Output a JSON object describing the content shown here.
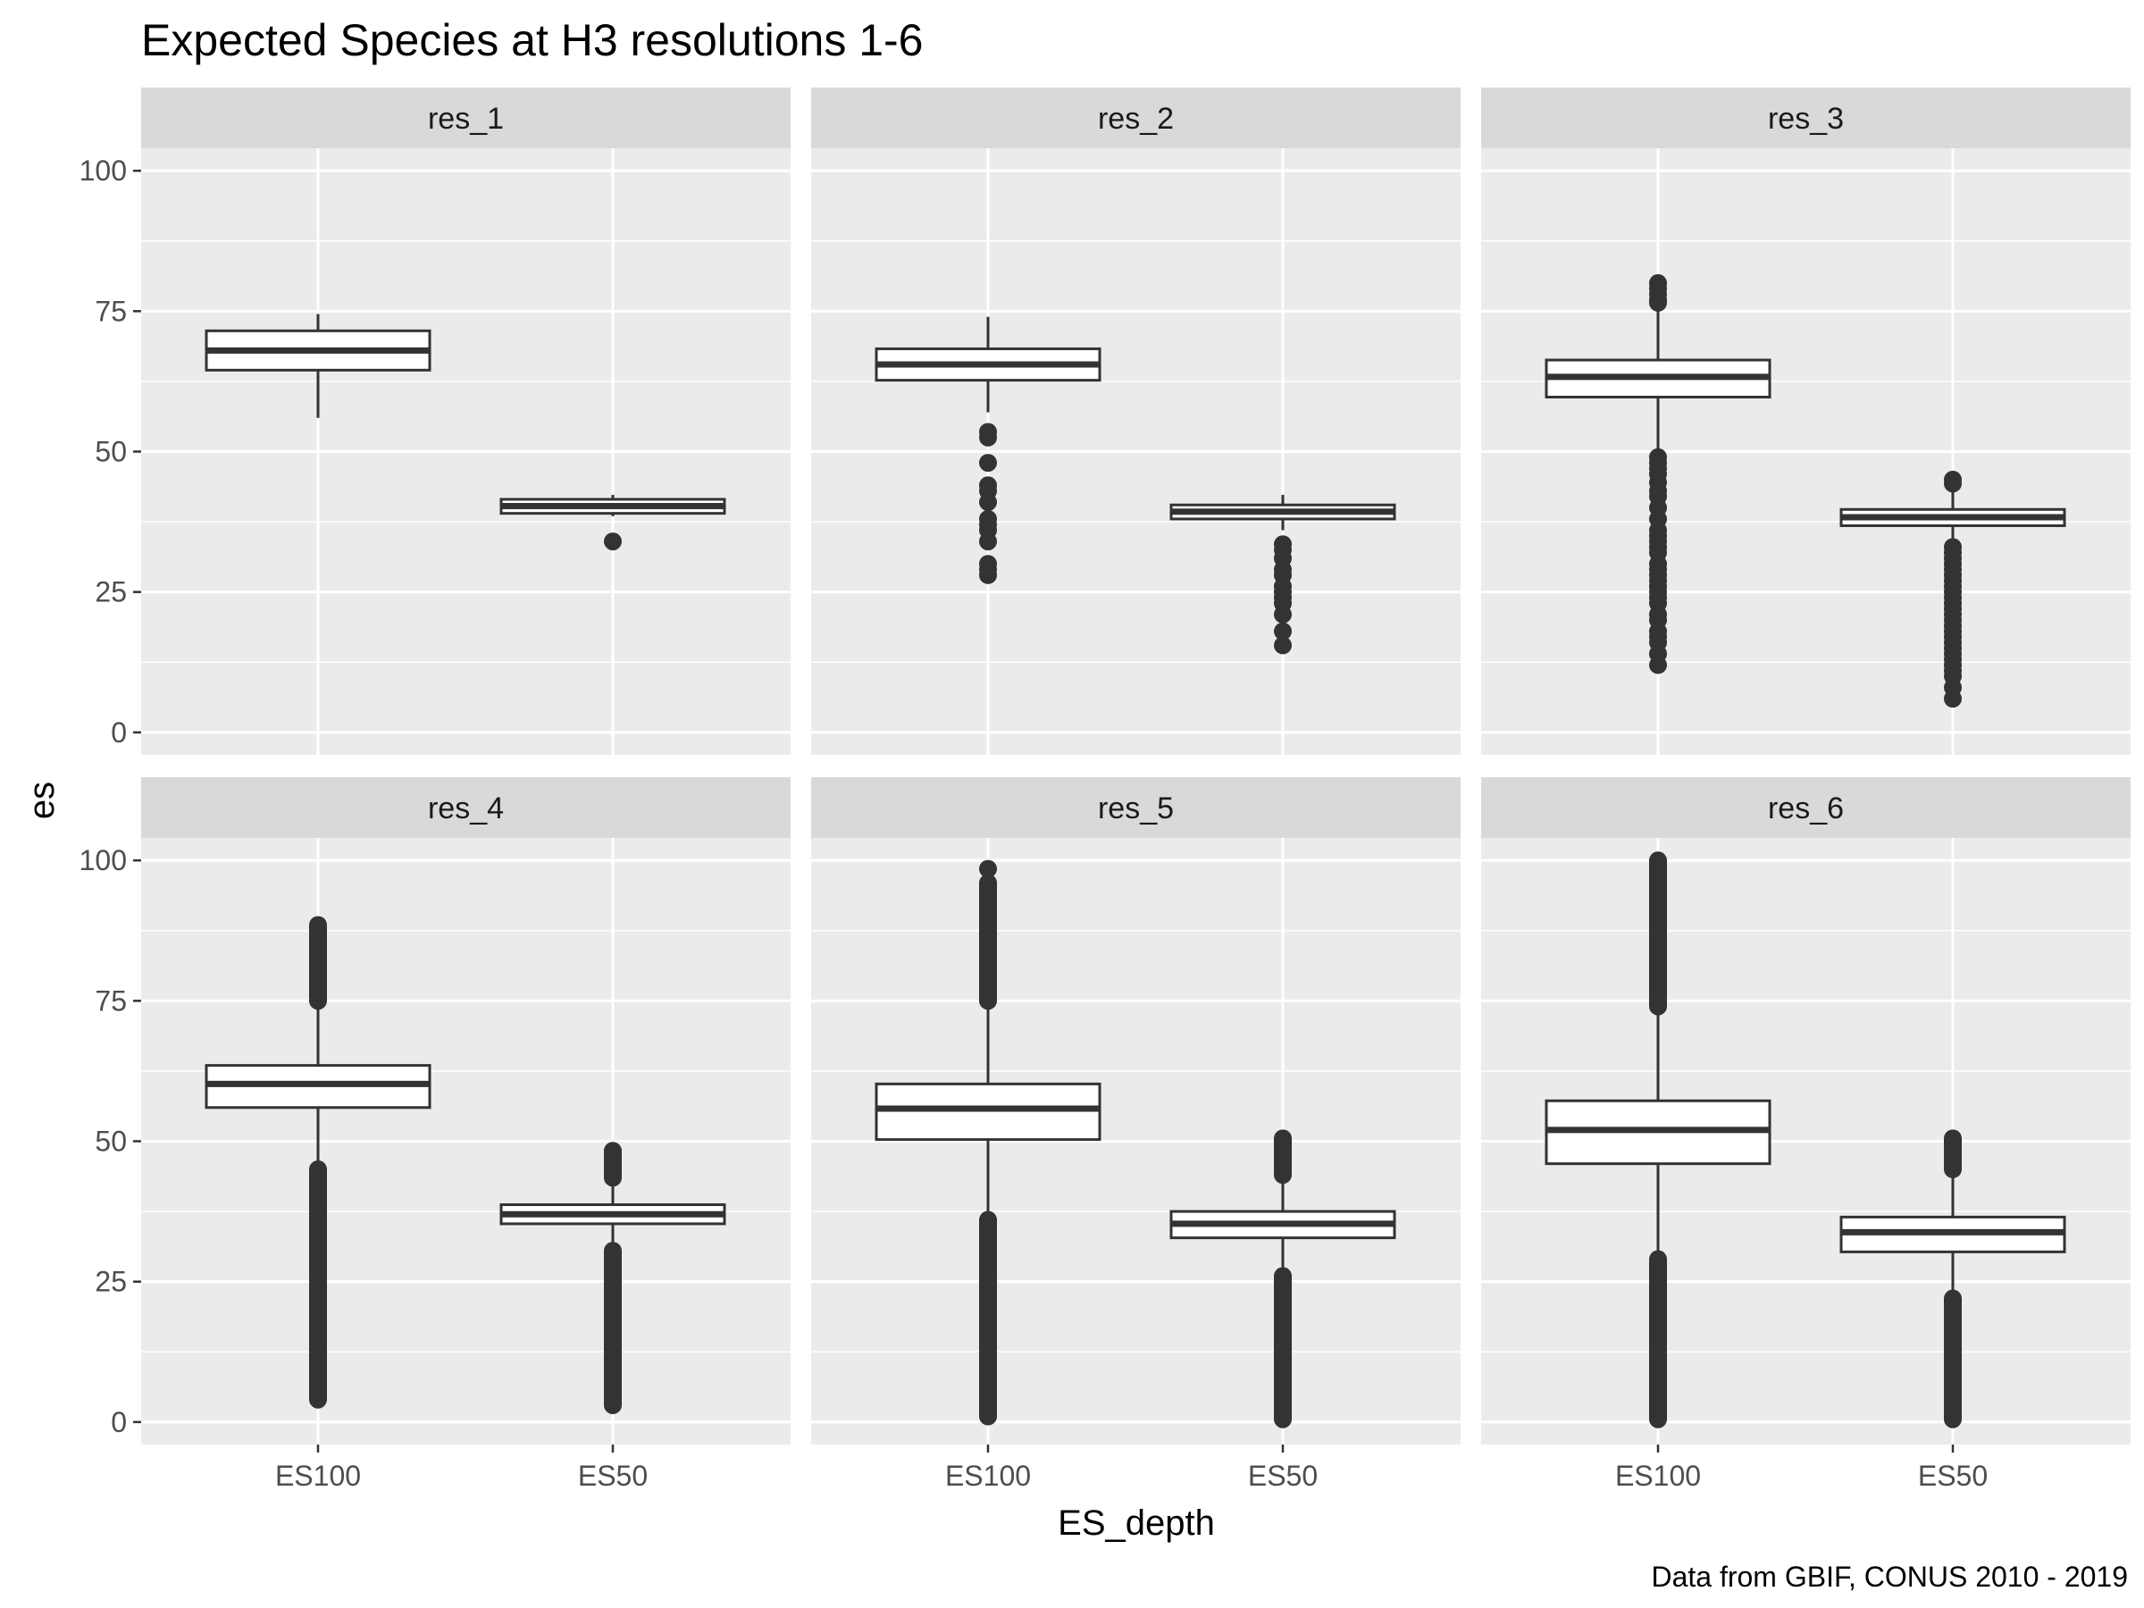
{
  "chart_data": {
    "type": "boxplot",
    "title": "Expected Species at H3 resolutions 1-6",
    "xlabel": "ES_depth",
    "ylabel": "es",
    "caption": "Data from GBIF, CONUS 2010 - 2019",
    "categories": [
      "ES100",
      "ES50"
    ],
    "ylim": [
      -4,
      104
    ],
    "yticks": [
      0,
      25,
      50,
      75,
      100
    ],
    "ytick_labels": [
      "0",
      "25",
      "50",
      "75",
      "100"
    ],
    "grid": true,
    "colors": {
      "panel_bg": "#ebebeb",
      "strip_bg": "#d9d9d9",
      "grid": "#ffffff",
      "box_fill": "#ffffff",
      "box_line": "#333333",
      "outlier": "#333333"
    },
    "panels": [
      {
        "label": "res_1",
        "boxes": [
          {
            "category": "ES100",
            "min": 56,
            "q1": 64.5,
            "median": 68,
            "q3": 71.5,
            "max": 74.5,
            "outliers": []
          },
          {
            "category": "ES50",
            "min": 38.5,
            "q1": 39,
            "median": 40.3,
            "q3": 41.5,
            "max": 42.3,
            "outliers": [
              34
            ]
          }
        ]
      },
      {
        "label": "res_2",
        "boxes": [
          {
            "category": "ES100",
            "min": 57,
            "q1": 62.7,
            "median": 65.5,
            "q3": 68.3,
            "max": 74,
            "outliers": [
              53.5,
              52.5,
              48,
              44,
              43,
              41,
              38,
              37,
              36,
              34,
              30,
              29,
              28
            ]
          },
          {
            "category": "ES50",
            "min": 36,
            "q1": 38,
            "median": 39.3,
            "q3": 40.5,
            "max": 42.3,
            "outliers": [
              33.5,
              32.5,
              31,
              29,
              28,
              26,
              25,
              24,
              23,
              21,
              18,
              15.5
            ]
          }
        ]
      },
      {
        "label": "res_3",
        "boxes": [
          {
            "category": "ES100",
            "min": 50,
            "q1": 59.7,
            "median": 63.3,
            "q3": 66.3,
            "max": 76,
            "outliers": [
              80,
              79,
              78,
              77,
              76.5,
              49,
              48,
              47,
              46,
              44.5,
              43,
              42,
              40,
              38,
              36,
              35,
              34,
              33,
              32,
              30,
              29,
              28,
              27,
              26,
              25,
              24,
              23,
              21,
              20,
              18,
              17,
              16,
              14,
              12
            ]
          },
          {
            "category": "ES50",
            "min": 33.5,
            "q1": 36.8,
            "median": 38.3,
            "q3": 39.7,
            "max": 43.5,
            "outliers": [
              45,
              44.3,
              33,
              32,
              31,
              30,
              29,
              28,
              27,
              26,
              25,
              24,
              23,
              22,
              21,
              20,
              19,
              18,
              17,
              16,
              15,
              14,
              13,
              12,
              11,
              10,
              8,
              6
            ]
          }
        ]
      },
      {
        "label": "res_4",
        "boxes": [
          {
            "category": "ES100",
            "min": 45,
            "q1": 56,
            "median": 60.2,
            "q3": 63.5,
            "max": 75,
            "outliers_range": [
              [
                75,
                88.5
              ],
              [
                4,
                45
              ]
            ]
          },
          {
            "category": "ES50",
            "min": 30.5,
            "q1": 35.3,
            "median": 37,
            "q3": 38.7,
            "max": 43.5,
            "outliers_range": [
              [
                43.5,
                48.3
              ],
              [
                3,
                30.5
              ]
            ]
          }
        ]
      },
      {
        "label": "res_5",
        "boxes": [
          {
            "category": "ES100",
            "min": 36,
            "q1": 50.3,
            "median": 55.8,
            "q3": 60.2,
            "max": 75,
            "outliers_range": [
              [
                75,
                96
              ]
            ],
            "outliers_extra": [
              98.5
            ],
            "outliers_range_low": [
              [
                1,
                36
              ]
            ]
          },
          {
            "category": "ES50",
            "min": 26,
            "q1": 32.8,
            "median": 35.3,
            "q3": 37.5,
            "max": 44,
            "outliers_range": [
              [
                44,
                50.5
              ],
              [
                0.5,
                26
              ]
            ]
          }
        ]
      },
      {
        "label": "res_6",
        "boxes": [
          {
            "category": "ES100",
            "min": 29,
            "q1": 46,
            "median": 52,
            "q3": 57.2,
            "max": 74,
            "outliers_range": [
              [
                74,
                100
              ],
              [
                0.5,
                29
              ]
            ]
          },
          {
            "category": "ES50",
            "min": 22,
            "q1": 30.3,
            "median": 33.8,
            "q3": 36.5,
            "max": 45,
            "outliers_range": [
              [
                45,
                50.5
              ],
              [
                0.5,
                22
              ]
            ]
          }
        ]
      }
    ]
  }
}
